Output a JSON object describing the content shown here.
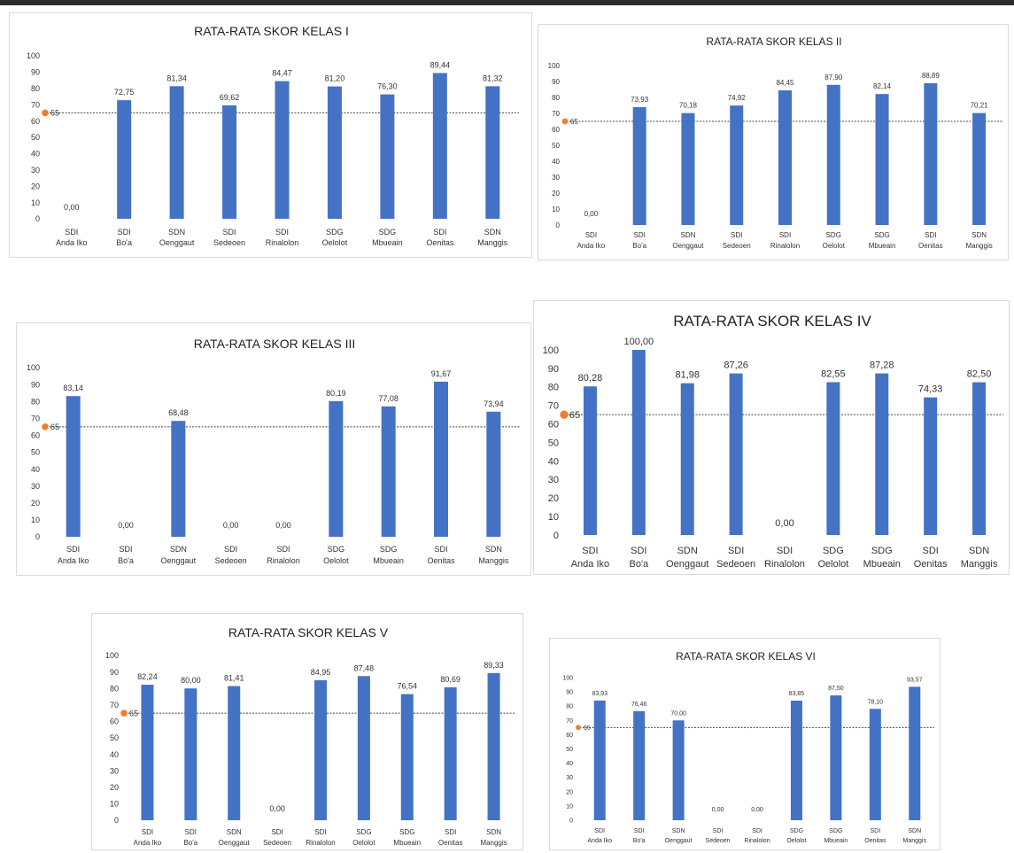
{
  "accent": "#4472c4",
  "reference_color": "#ed7d31",
  "chart_data": [
    {
      "type": "bar",
      "title": "RATA-RATA SKOR KELAS I",
      "categories": [
        "SDI Anda Iko",
        "SDI Bo'a",
        "SDN Oenggaut",
        "SDI Sedeoen",
        "SDI Rinalolon",
        "SDG Oelolot",
        "SDG Mbueain",
        "SDI Oenitas",
        "SDN Manggis"
      ],
      "values": [
        0.0,
        72.75,
        81.34,
        69.62,
        84.47,
        81.2,
        76.3,
        89.44,
        81.32
      ],
      "value_labels": [
        "0,00",
        "72,75",
        "81,34",
        "69,62",
        "84,47",
        "81,20",
        "76,30",
        "89,44",
        "81,32"
      ],
      "yticks": [
        "0",
        "10",
        "20",
        "30",
        "40",
        "50",
        "60",
        "70",
        "80",
        "90",
        "100"
      ],
      "ylim": [
        0,
        100
      ],
      "reference_value": 65,
      "reference_label": "65",
      "grid": false,
      "legend": "none"
    },
    {
      "type": "bar",
      "title": "RATA-RATA SKOR KELAS II",
      "categories": [
        "SDI Anda Iko",
        "SDI Bo'a",
        "SDN Oenggaut",
        "SDI Sedeoen",
        "SDI Rinalolon",
        "SDG Oelolot",
        "SDG Mbueain",
        "SDI Oenitas",
        "SDN Manggis"
      ],
      "values": [
        0.0,
        73.93,
        70.18,
        74.92,
        84.45,
        87.9,
        82.14,
        88.89,
        70.21
      ],
      "value_labels": [
        "0,00",
        "73,93",
        "70,18",
        "74,92",
        "84,45",
        "87,90",
        "82,14",
        "88,89",
        "70,21"
      ],
      "yticks": [
        "0",
        "10",
        "20",
        "30",
        "40",
        "50",
        "60",
        "70",
        "80",
        "90",
        "100"
      ],
      "ylim": [
        0,
        100
      ],
      "reference_value": 65,
      "reference_label": "65",
      "grid": false,
      "legend": "none"
    },
    {
      "type": "bar",
      "title": "RATA-RATA SKOR KELAS III",
      "categories": [
        "SDI Anda Iko",
        "SDI Bo'a",
        "SDN Oenggaut",
        "SDI Sedeoen",
        "SDI Rinalolon",
        "SDG Oelolot",
        "SDG Mbueain",
        "SDI Oenitas",
        "SDN Manggis"
      ],
      "values": [
        83.14,
        0.0,
        68.48,
        0.0,
        0.0,
        80.19,
        77.08,
        91.67,
        73.94
      ],
      "value_labels": [
        "83,14",
        "0,00",
        "68,48",
        "0,00",
        "0,00",
        "80,19",
        "77,08",
        "91,67",
        "73,94"
      ],
      "yticks": [
        "0",
        "10",
        "20",
        "30",
        "40",
        "50",
        "60",
        "70",
        "80",
        "90",
        "100"
      ],
      "ylim": [
        0,
        100
      ],
      "reference_value": 65,
      "reference_label": "65",
      "grid": false,
      "legend": "none"
    },
    {
      "type": "bar",
      "title": "RATA-RATA SKOR KELAS IV",
      "categories": [
        "SDI Anda Iko",
        "SDI Bo'a",
        "SDN Oenggaut",
        "SDI Sedeoen",
        "SDI Rinalolon",
        "SDG Oelolot",
        "SDG Mbueain",
        "SDI Oenitas",
        "SDN Manggis"
      ],
      "values": [
        80.28,
        100.0,
        81.98,
        87.26,
        0.0,
        82.55,
        87.28,
        74.33,
        82.5
      ],
      "value_labels": [
        "80,28",
        "100,00",
        "81,98",
        "87,26",
        "0,00",
        "82,55",
        "87,28",
        "74,33",
        "82,50"
      ],
      "yticks": [
        "0",
        "10",
        "20",
        "30",
        "40",
        "50",
        "60",
        "70",
        "80",
        "90",
        "100"
      ],
      "ylim": [
        0,
        100
      ],
      "reference_value": 65,
      "reference_label": "65",
      "grid": false,
      "legend": "none"
    },
    {
      "type": "bar",
      "title": "RATA-RATA SKOR KELAS V",
      "categories": [
        "SDI Anda Iko",
        "SDI Bo'a",
        "SDN Oenggaut",
        "SDI Sedeoen",
        "SDI Rinalolon",
        "SDG Oelolot",
        "SDG Mbueain",
        "SDI Oenitas",
        "SDN Manggis"
      ],
      "values": [
        82.24,
        80.0,
        81.41,
        0.0,
        84.95,
        87.48,
        76.54,
        80.69,
        89.33
      ],
      "value_labels": [
        "82,24",
        "80,00",
        "81,41",
        "0,00",
        "84,95",
        "87,48",
        "76,54",
        "80,69",
        "89,33"
      ],
      "yticks": [
        "0",
        "10",
        "20",
        "30",
        "40",
        "50",
        "60",
        "70",
        "80",
        "90",
        "100"
      ],
      "ylim": [
        0,
        100
      ],
      "reference_value": 65,
      "reference_label": "65",
      "grid": false,
      "legend": "none"
    },
    {
      "type": "bar",
      "title": "RATA-RATA SKOR KELAS VI",
      "categories": [
        "SDI Anda Iko",
        "SDI Bo'a",
        "SDN Oenggaut",
        "SDI Sedeoen",
        "SDI Rinalolon",
        "SDG Oelolot",
        "SDG Mbueain",
        "SDI Oenitas",
        "SDN Manggis"
      ],
      "values": [
        83.93,
        76.46,
        70.0,
        0.0,
        0.0,
        83.85,
        87.5,
        78.1,
        93.57
      ],
      "value_labels": [
        "83,93",
        "76,46",
        "70,00",
        "0,00",
        "0,00",
        "83,85",
        "87,50",
        "78,10",
        "93,57"
      ],
      "yticks": [
        "0",
        "10",
        "20",
        "30",
        "40",
        "50",
        "60",
        "70",
        "80",
        "90",
        "100"
      ],
      "ylim": [
        0,
        100
      ],
      "reference_value": 65,
      "reference_label": "65",
      "grid": false,
      "legend": "none"
    }
  ]
}
